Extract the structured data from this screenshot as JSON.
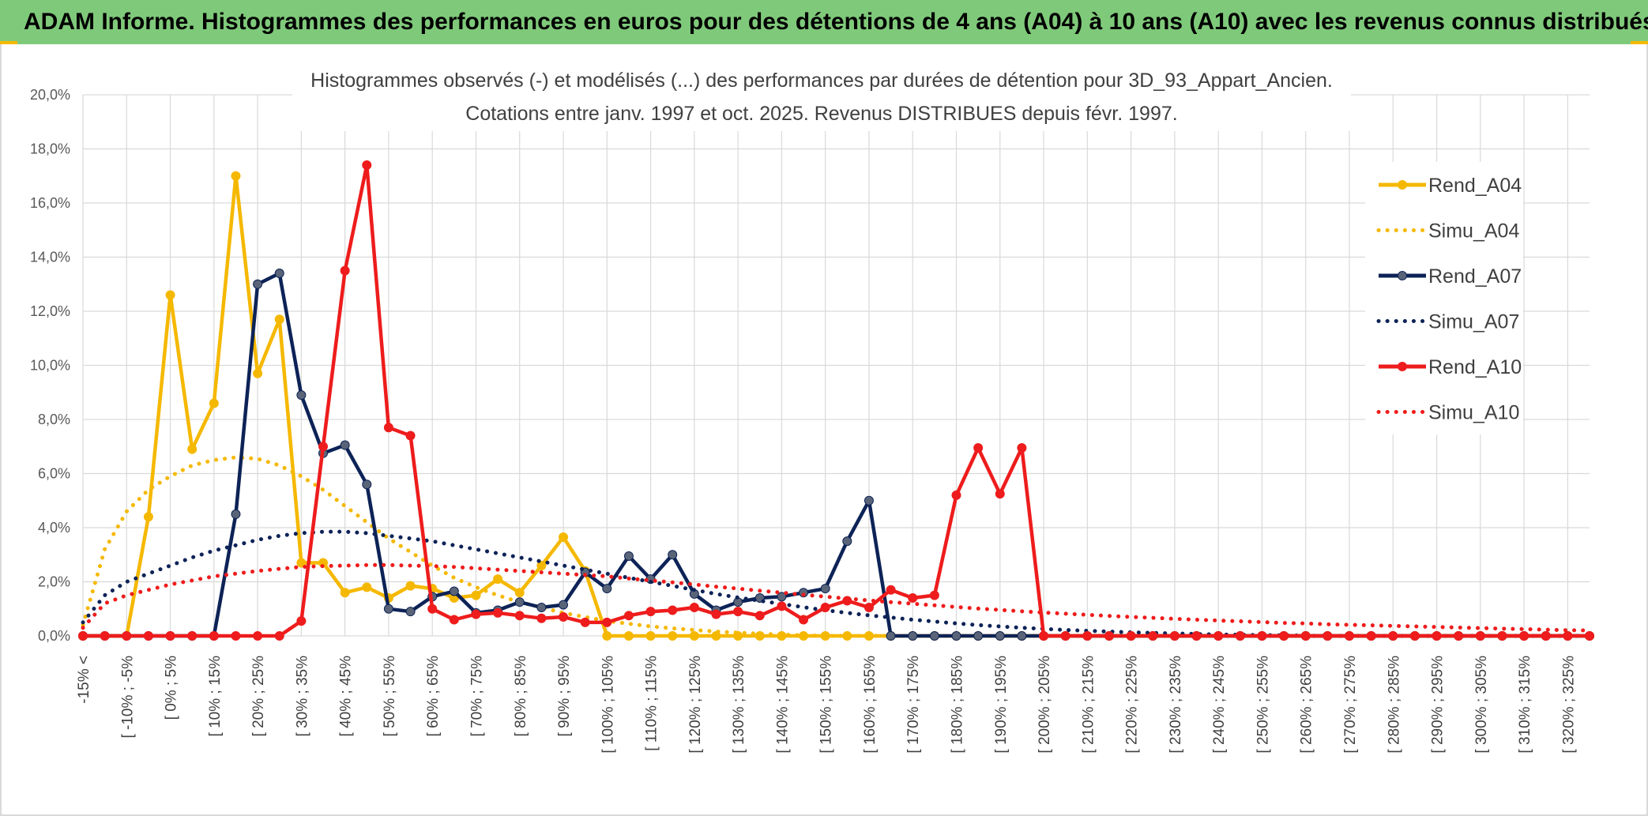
{
  "header": {
    "title": "ADAM Informe. Histogrammes des performances en euros pour des détentions de 4 ans (A04) à 10 ans (A10) avec les revenus connus distribués"
  },
  "chart_data": {
    "type": "line",
    "title_line1": "Histogrammes observés (-) et modélisés (...) des performances par durées de détention pour 3D_93_Appart_Ancien.",
    "title_line2": "Cotations entre janv. 1997 et oct. 2025. Revenus DISTRIBUES depuis févr. 1997.",
    "y_ticks": [
      "0,0%",
      "2,0%",
      "4,0%",
      "6,0%",
      "8,0%",
      "10,0%",
      "12,0%",
      "14,0%",
      "16,0%",
      "18,0%",
      "20,0%"
    ],
    "ylim": [
      0,
      20
    ],
    "x_labels": [
      "-15% <",
      "[ -10% ; -5%",
      "[ 0% ; 5%",
      "[ 10% ; 15%",
      "[ 20% ; 25%",
      "[ 30% ; 35%",
      "[ 40% ; 45%",
      "[ 50% ; 55%",
      "[ 60% ; 65%",
      "[ 70% ; 75%",
      "[ 80% ; 85%",
      "[ 90% ; 95%",
      "[ 100% ; 105%",
      "[ 110% ; 115%",
      "[ 120% ; 125%",
      "[ 130% ; 135%",
      "[ 140% ; 145%",
      "[ 150% ; 155%",
      "[ 160% ; 165%",
      "[ 170% ; 175%",
      "[ 180% ; 185%",
      "[ 190% ; 195%",
      "[ 200% ; 205%",
      "[ 210% ; 215%",
      "[ 220% ; 225%",
      "[ 230% ; 235%",
      "[ 240% ; 245%",
      "[ 250% ; 255%",
      "[ 260% ; 265%",
      "[ 270% ; 275%",
      "[ 280% ; 285%",
      "[ 290% ; 295%",
      "[ 300% ; 305%",
      "[ 310% ; 315%",
      "[ 320% ; 325%"
    ],
    "num_categories": 70,
    "series": [
      {
        "name": "Rend_A04",
        "style": "solid",
        "color": "#f5b800",
        "marker": true,
        "values": [
          0,
          0,
          0,
          4.4,
          12.6,
          6.9,
          8.6,
          17.0,
          9.7,
          11.7,
          2.7,
          2.7,
          1.6,
          1.8,
          1.4,
          1.85,
          1.75,
          1.4,
          1.5,
          2.1,
          1.6,
          2.6,
          3.65,
          2.4,
          0,
          0,
          0,
          0,
          0,
          0,
          0,
          0,
          0,
          0,
          0,
          0,
          0,
          0,
          0,
          0,
          0,
          0,
          0,
          0,
          0,
          0,
          0,
          0,
          0,
          0,
          0,
          0,
          0,
          0,
          0,
          0,
          0,
          0,
          0,
          0,
          0,
          0,
          0,
          0,
          0,
          0,
          0,
          0,
          0,
          0
        ]
      },
      {
        "name": "Simu_A04",
        "style": "dotted",
        "color": "#f5b800",
        "marker": false,
        "values": [
          0.4,
          3.2,
          4.6,
          5.4,
          5.9,
          6.3,
          6.5,
          6.6,
          6.55,
          6.3,
          5.9,
          5.4,
          4.8,
          4.2,
          3.6,
          3.1,
          2.6,
          2.15,
          1.8,
          1.5,
          1.25,
          1.05,
          0.85,
          0.7,
          0.55,
          0.45,
          0.35,
          0.28,
          0.22,
          0.16,
          0.12,
          0.08,
          0.05,
          0.02,
          0,
          0,
          0,
          0,
          0,
          0,
          0,
          0,
          0,
          0,
          0,
          0,
          0,
          0,
          0,
          0,
          0,
          0,
          0,
          0,
          0,
          0,
          0,
          0,
          0,
          0,
          0,
          0,
          0,
          0,
          0,
          0,
          0,
          0,
          0,
          0
        ]
      },
      {
        "name": "Rend_A07",
        "style": "solid",
        "color": "#0d2357",
        "marker": true,
        "values": [
          0,
          0,
          0,
          0,
          0,
          0,
          0,
          4.5,
          13.0,
          13.4,
          8.9,
          6.75,
          7.05,
          5.6,
          1.0,
          0.9,
          1.45,
          1.65,
          0.85,
          0.95,
          1.25,
          1.05,
          1.15,
          2.35,
          1.75,
          2.95,
          2.1,
          3.0,
          1.55,
          0.95,
          1.25,
          1.4,
          1.45,
          1.6,
          1.75,
          3.5,
          5.0,
          0,
          0,
          0,
          0,
          0,
          0,
          0,
          0,
          0,
          0,
          0,
          0,
          0,
          0,
          0,
          0,
          0,
          0,
          0,
          0,
          0,
          0,
          0,
          0,
          0,
          0,
          0,
          0,
          0,
          0,
          0,
          0,
          0
        ]
      },
      {
        "name": "Simu_A07",
        "style": "dotted",
        "color": "#0d2357",
        "marker": false,
        "values": [
          0.5,
          1.5,
          2.0,
          2.3,
          2.6,
          2.9,
          3.15,
          3.35,
          3.55,
          3.7,
          3.8,
          3.85,
          3.85,
          3.8,
          3.7,
          3.6,
          3.5,
          3.35,
          3.2,
          3.05,
          2.9,
          2.75,
          2.6,
          2.45,
          2.3,
          2.15,
          2.0,
          1.85,
          1.7,
          1.55,
          1.42,
          1.3,
          1.18,
          1.06,
          0.95,
          0.85,
          0.76,
          0.68,
          0.6,
          0.53,
          0.46,
          0.4,
          0.35,
          0.3,
          0.26,
          0.22,
          0.19,
          0.16,
          0.13,
          0.11,
          0.09,
          0.07,
          0.05,
          0.04,
          0.03,
          0.02,
          0.01,
          0,
          0,
          0,
          0,
          0,
          0,
          0,
          0,
          0,
          0,
          0,
          0,
          0
        ]
      },
      {
        "name": "Rend_A10",
        "style": "solid",
        "color": "#ee1c1c",
        "marker": true,
        "values": [
          0,
          0,
          0,
          0,
          0,
          0,
          0,
          0,
          0,
          0,
          0.55,
          7.0,
          13.5,
          17.4,
          7.7,
          7.4,
          1.0,
          0.6,
          0.8,
          0.85,
          0.75,
          0.65,
          0.7,
          0.5,
          0.5,
          0.75,
          0.9,
          0.95,
          1.05,
          0.8,
          0.9,
          0.75,
          1.1,
          0.6,
          1.05,
          1.3,
          1.05,
          1.7,
          1.4,
          1.5,
          5.2,
          6.95,
          5.25,
          6.95,
          0,
          0,
          0,
          0,
          0,
          0,
          0,
          0,
          0,
          0,
          0,
          0,
          0,
          0,
          0,
          0,
          0,
          0,
          0,
          0,
          0,
          0,
          0,
          0,
          0,
          0
        ]
      },
      {
        "name": "Simu_A10",
        "style": "dotted",
        "color": "#ee1c1c",
        "marker": false,
        "values": [
          0.3,
          1.2,
          1.5,
          1.7,
          1.9,
          2.05,
          2.2,
          2.3,
          2.4,
          2.48,
          2.55,
          2.58,
          2.6,
          2.62,
          2.62,
          2.6,
          2.58,
          2.55,
          2.5,
          2.45,
          2.4,
          2.35,
          2.3,
          2.25,
          2.2,
          2.12,
          2.05,
          1.98,
          1.9,
          1.82,
          1.75,
          1.67,
          1.6,
          1.52,
          1.45,
          1.38,
          1.31,
          1.25,
          1.19,
          1.13,
          1.07,
          1.01,
          0.96,
          0.91,
          0.86,
          0.82,
          0.78,
          0.74,
          0.7,
          0.67,
          0.63,
          0.6,
          0.57,
          0.54,
          0.51,
          0.48,
          0.46,
          0.43,
          0.41,
          0.39,
          0.37,
          0.35,
          0.33,
          0.31,
          0.29,
          0.27,
          0.25,
          0.23,
          0.21,
          0.2
        ]
      }
    ],
    "legend": [
      "Rend_A04",
      "Simu_A04",
      "Rend_A07",
      "Simu_A07",
      "Rend_A10",
      "Simu_A10"
    ],
    "legend_position": "right"
  }
}
